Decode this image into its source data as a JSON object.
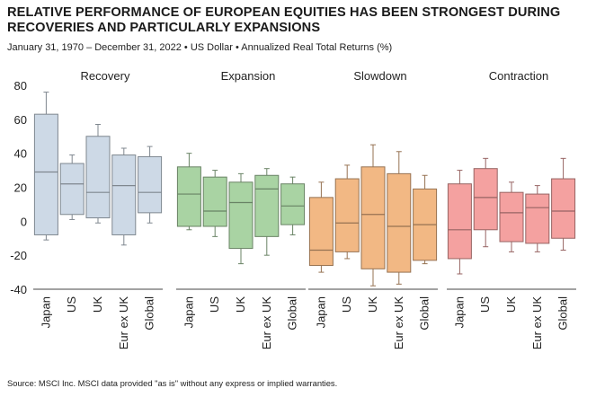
{
  "title": "RELATIVE PERFORMANCE OF EUROPEAN EQUITIES HAS BEEN STRONGEST DURING RECOVERIES AND PARTICULARLY EXPANSIONS",
  "subtitle": "January 31, 1970 – December 31, 2022 • US Dollar • Annualized Real Total Returns (%)",
  "source": "Source: MSCI Inc. MSCI data provided \"as is\" without any express or implied warranties.",
  "chart_data": {
    "type": "box",
    "ylim": [
      -40,
      80
    ],
    "yticks": [
      "80",
      "60",
      "40",
      "20",
      "0",
      "-20",
      "-40"
    ],
    "grid": false,
    "categories": [
      "Japan",
      "US",
      "UK",
      "Eur ex UK",
      "Global"
    ],
    "groups": [
      {
        "name": "Recovery",
        "color": "#cdd9e6",
        "boxes": [
          {
            "min": -11,
            "q1": -8,
            "median": 29,
            "q3": 63,
            "max": 76
          },
          {
            "min": 1,
            "q1": 4,
            "median": 22,
            "q3": 34,
            "max": 39
          },
          {
            "min": -1,
            "q1": 2,
            "median": 17,
            "q3": 50,
            "max": 57
          },
          {
            "min": -14,
            "q1": -8,
            "median": 21,
            "q3": 39,
            "max": 43
          },
          {
            "min": -1,
            "q1": 5,
            "median": 17,
            "q3": 38,
            "max": 44
          }
        ]
      },
      {
        "name": "Expansion",
        "color": "#a9d3a3",
        "boxes": [
          {
            "min": -5,
            "q1": -3,
            "median": 16,
            "q3": 32,
            "max": 40
          },
          {
            "min": -9,
            "q1": -3,
            "median": 6,
            "q3": 26,
            "max": 30
          },
          {
            "min": -25,
            "q1": -16,
            "median": 11,
            "q3": 23,
            "max": 28
          },
          {
            "min": -20,
            "q1": -9,
            "median": 19,
            "q3": 27,
            "max": 31
          },
          {
            "min": -8,
            "q1": -2,
            "median": 9,
            "q3": 22,
            "max": 26
          }
        ]
      },
      {
        "name": "Slowdown",
        "color": "#f2b884",
        "boxes": [
          {
            "min": -30,
            "q1": -26,
            "median": -17,
            "q3": 14,
            "max": 23
          },
          {
            "min": -22,
            "q1": -18,
            "median": -1,
            "q3": 25,
            "max": 33
          },
          {
            "min": -38,
            "q1": -28,
            "median": 4,
            "q3": 32,
            "max": 45
          },
          {
            "min": -37,
            "q1": -30,
            "median": -3,
            "q3": 28,
            "max": 41
          },
          {
            "min": -25,
            "q1": -23,
            "median": -2,
            "q3": 19,
            "max": 27
          }
        ]
      },
      {
        "name": "Contraction",
        "color": "#f4a1a0",
        "boxes": [
          {
            "min": -31,
            "q1": -22,
            "median": -5,
            "q3": 22,
            "max": 30
          },
          {
            "min": -15,
            "q1": -5,
            "median": 14,
            "q3": 31,
            "max": 37
          },
          {
            "min": -18,
            "q1": -12,
            "median": 5,
            "q3": 17,
            "max": 23
          },
          {
            "min": -18,
            "q1": -13,
            "median": 8,
            "q3": 16,
            "max": 21
          },
          {
            "min": -17,
            "q1": -10,
            "median": 6,
            "q3": 25,
            "max": 37
          }
        ]
      }
    ]
  }
}
